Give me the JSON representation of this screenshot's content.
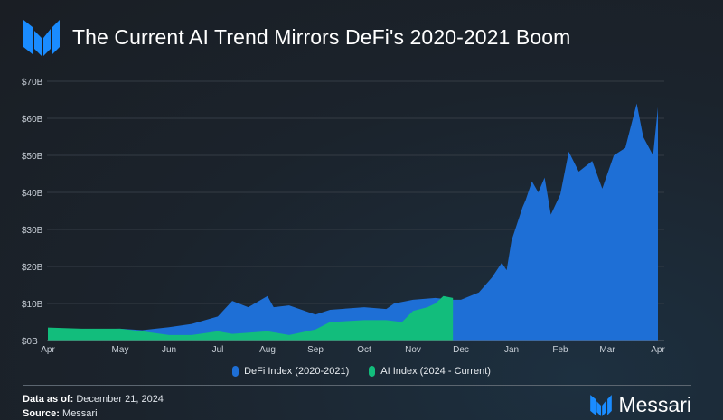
{
  "header": {
    "title": "The Current AI Trend Mirrors DeFi's 2020-2021 Boom",
    "logo_text": "Messari"
  },
  "colors": {
    "defi": "#1e6fd6",
    "ai": "#12bd7c",
    "grid": "#3a424b",
    "axis_text": "#c9d0d8",
    "accent": "#1a8cff"
  },
  "chart_data": {
    "type": "area",
    "title": "The Current AI Trend Mirrors DeFi's 2020-2021 Boom",
    "xlabel": "",
    "ylabel": "",
    "ylim": [
      0,
      70
    ],
    "yticks": [
      {
        "v": 0,
        "label": "$0B"
      },
      {
        "v": 10,
        "label": "$10B"
      },
      {
        "v": 20,
        "label": "$20B"
      },
      {
        "v": 30,
        "label": "$30B"
      },
      {
        "v": 40,
        "label": "$40B"
      },
      {
        "v": 50,
        "label": "$50B"
      },
      {
        "v": 60,
        "label": "$60B"
      },
      {
        "v": 70,
        "label": "$70B"
      }
    ],
    "xticks": [
      "Apr",
      "May",
      "Jun",
      "Jul",
      "Aug",
      "Sep",
      "Oct",
      "Nov",
      "Dec",
      "Jan",
      "Feb",
      "Mar",
      "Apr"
    ],
    "grid": true,
    "legend": "bottom",
    "series": [
      {
        "name": "DeFi Index (2020-2021)",
        "color": "#1e6fd6",
        "points": [
          [
            "2020-04-01",
            3.3
          ],
          [
            "2020-04-15",
            3.0
          ],
          [
            "2020-05-01",
            3.2
          ],
          [
            "2020-05-15",
            2.8
          ],
          [
            "2020-06-01",
            3.6
          ],
          [
            "2020-06-15",
            4.5
          ],
          [
            "2020-07-01",
            6.5
          ],
          [
            "2020-07-10",
            10.7
          ],
          [
            "2020-07-20",
            9.0
          ],
          [
            "2020-08-01",
            12.0
          ],
          [
            "2020-08-05",
            9.0
          ],
          [
            "2020-08-15",
            9.5
          ],
          [
            "2020-09-01",
            7.0
          ],
          [
            "2020-09-10",
            8.3
          ],
          [
            "2020-10-01",
            9.0
          ],
          [
            "2020-10-15",
            8.5
          ],
          [
            "2020-10-20",
            10.0
          ],
          [
            "2020-11-01",
            11.0
          ],
          [
            "2020-11-15",
            11.5
          ],
          [
            "2020-11-25",
            11.0
          ],
          [
            "2020-12-01",
            11.0
          ],
          [
            "2020-12-12",
            13.0
          ],
          [
            "2020-12-20",
            17.0
          ],
          [
            "2020-12-26",
            21.0
          ],
          [
            "2020-12-29",
            19.0
          ],
          [
            "2021-01-01",
            27.0
          ],
          [
            "2021-01-08",
            36.0
          ],
          [
            "2021-01-10",
            38.0
          ],
          [
            "2021-01-14",
            43.0
          ],
          [
            "2021-01-18",
            40.0
          ],
          [
            "2021-01-22",
            44.0
          ],
          [
            "2021-01-26",
            34.0
          ],
          [
            "2021-02-01",
            39.5
          ],
          [
            "2021-02-06",
            51.0
          ],
          [
            "2021-02-12",
            45.6
          ],
          [
            "2021-02-20",
            48.5
          ],
          [
            "2021-02-26",
            41.0
          ],
          [
            "2021-03-05",
            50.0
          ],
          [
            "2021-03-12",
            52.0
          ],
          [
            "2021-03-19",
            64.0
          ],
          [
            "2021-03-23",
            55.0
          ],
          [
            "2021-03-29",
            50.0
          ],
          [
            "2021-04-01",
            63.0
          ],
          [
            "2021-04-04",
            63.0
          ]
        ]
      },
      {
        "name": "AI Index (2024 - Current)",
        "color": "#12bd7c",
        "points": [
          [
            "2024-04-01",
            3.5
          ],
          [
            "2024-04-15",
            3.2
          ],
          [
            "2024-05-01",
            3.2
          ],
          [
            "2024-05-15",
            2.5
          ],
          [
            "2024-06-01",
            1.5
          ],
          [
            "2024-06-15",
            1.5
          ],
          [
            "2024-07-01",
            2.5
          ],
          [
            "2024-07-10",
            1.8
          ],
          [
            "2024-08-01",
            2.5
          ],
          [
            "2024-08-15",
            1.5
          ],
          [
            "2024-09-01",
            3.0
          ],
          [
            "2024-09-10",
            5.0
          ],
          [
            "2024-10-01",
            5.5
          ],
          [
            "2024-10-15",
            5.5
          ],
          [
            "2024-10-25",
            5.0
          ],
          [
            "2024-11-01",
            8.0
          ],
          [
            "2024-11-10",
            9.0
          ],
          [
            "2024-11-15",
            10.0
          ],
          [
            "2024-11-20",
            12.0
          ],
          [
            "2024-11-26",
            11.5
          ]
        ]
      }
    ]
  },
  "legend": [
    {
      "label": "DeFi Index (2020-2021)"
    },
    {
      "label": "AI Index (2024 - Current)"
    }
  ],
  "footer": {
    "data_as_of_label": "Data as of:",
    "data_as_of": "December 21, 2024",
    "source_label": "Source:",
    "source": "Messari"
  }
}
